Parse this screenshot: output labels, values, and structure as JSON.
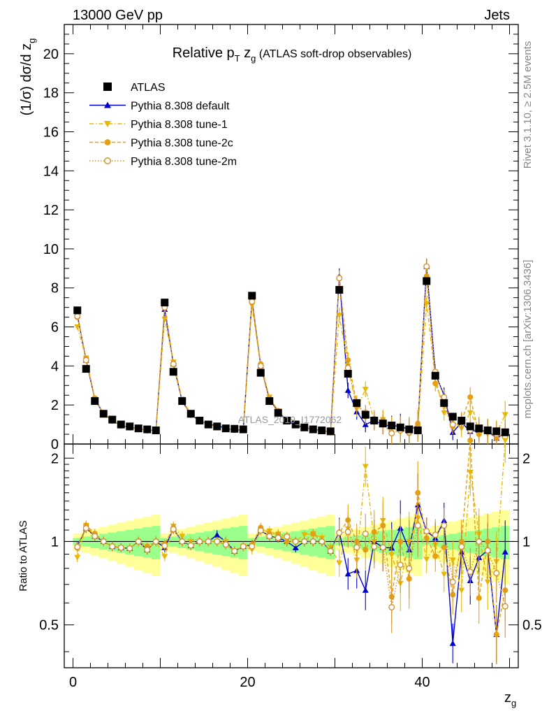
{
  "header": {
    "left": "13000 GeV pp",
    "right": "Jets",
    "side_top": "Rivet 3.1.10, ≥ 2.5M events",
    "side_bottom": "mcplots.cern.ch [arXiv:1306.3436]",
    "watermark": "ATLAS_2019_I1772062"
  },
  "chart_data": {
    "type": "line",
    "title": "Relative p_T z_g (ATLAS soft-drop observables)",
    "xlabel": "z_g",
    "ylabel": "(1/σ) dσ/d z_g",
    "ratio_ylabel": "Ratio to ATLAS",
    "xlim": [
      -1,
      51
    ],
    "ylim": [
      0,
      21.5
    ],
    "ratio_ylim": [
      0.35,
      2.25
    ],
    "x_ticks": [
      0,
      20,
      40
    ],
    "y_ticks": [
      0,
      2,
      4,
      6,
      8,
      10,
      12,
      14,
      16,
      18,
      20
    ],
    "ratio_ticks": [
      0.5,
      1,
      2
    ],
    "legend_position": "top-left",
    "x": [
      0.5,
      1.5,
      2.5,
      3.5,
      4.5,
      5.5,
      6.5,
      7.5,
      8.5,
      9.5,
      10.5,
      11.5,
      12.5,
      13.5,
      14.5,
      15.5,
      16.5,
      17.5,
      18.5,
      19.5,
      20.5,
      21.5,
      22.5,
      23.5,
      24.5,
      25.5,
      26.5,
      27.5,
      28.5,
      29.5,
      30.5,
      31.5,
      32.5,
      33.5,
      34.5,
      35.5,
      36.5,
      37.5,
      38.5,
      39.5,
      40.5,
      41.5,
      42.5,
      43.5,
      44.5,
      45.5,
      46.5,
      47.5,
      48.5,
      49.5
    ],
    "series": [
      {
        "name": "ATLAS",
        "color": "#000000",
        "marker": "square",
        "dash": "none",
        "values": [
          6.85,
          3.85,
          2.2,
          1.55,
          1.25,
          1.0,
          0.9,
          0.8,
          0.75,
          0.7,
          7.25,
          3.7,
          2.2,
          1.55,
          1.2,
          1.0,
          0.9,
          0.8,
          0.78,
          0.75,
          7.6,
          3.65,
          2.2,
          1.6,
          1.2,
          1.0,
          0.85,
          0.75,
          0.7,
          0.65,
          7.9,
          3.6,
          2.1,
          1.5,
          1.2,
          1.05,
          0.95,
          0.85,
          0.75,
          0.7,
          8.35,
          3.5,
          2.1,
          1.4,
          1.2,
          0.9,
          0.8,
          0.7,
          0.65,
          0.6
        ]
      },
      {
        "name": "Pythia 8.308 default",
        "color": "#0000cc",
        "marker": "triangle-up",
        "dash": "none",
        "values": [
          6.6,
          4.3,
          2.3,
          1.55,
          1.2,
          0.95,
          0.85,
          0.8,
          0.7,
          0.7,
          6.9,
          4.1,
          2.2,
          1.5,
          1.2,
          1.0,
          0.95,
          0.8,
          0.72,
          0.72,
          7.4,
          4.0,
          2.3,
          1.65,
          1.2,
          0.95,
          0.85,
          0.75,
          0.7,
          0.6,
          8.6,
          2.75,
          1.65,
          1.0,
          1.2,
          1.0,
          0.9,
          0.95,
          0.7,
          0.95,
          9.1,
          3.6,
          2.5,
          0.6,
          1.1,
          0.65,
          0.7,
          0.65,
          0.3,
          0.55
        ]
      },
      {
        "name": "Pythia 8.308 tune-1",
        "color": "#e8b800",
        "marker": "triangle-down",
        "dash": "6,3,1.5,3",
        "values": [
          6.0,
          4.4,
          2.3,
          1.55,
          1.2,
          0.95,
          0.85,
          0.8,
          0.7,
          0.7,
          6.4,
          4.2,
          2.3,
          1.55,
          1.2,
          1.0,
          0.9,
          0.8,
          0.72,
          0.72,
          7.1,
          4.0,
          2.4,
          1.7,
          1.25,
          1.0,
          0.9,
          0.8,
          0.72,
          0.62,
          6.6,
          4.0,
          1.8,
          2.8,
          1.2,
          1.25,
          0.85,
          0.6,
          0.75,
          0.85,
          7.2,
          3.4,
          1.6,
          1.2,
          0.8,
          1.6,
          0.85,
          0.5,
          0.55,
          1.5
        ]
      },
      {
        "name": "Pythia 8.308 tune-2c",
        "color": "#e6a010",
        "marker": "circle",
        "dash": "5,3",
        "values": [
          6.5,
          4.4,
          2.35,
          1.55,
          1.2,
          0.95,
          0.85,
          0.8,
          0.72,
          0.7,
          7.1,
          4.15,
          2.2,
          1.5,
          1.2,
          1.0,
          0.9,
          0.78,
          0.72,
          0.72,
          7.4,
          4.1,
          2.35,
          1.7,
          1.2,
          1.0,
          0.85,
          0.8,
          0.7,
          0.6,
          8.5,
          4.3,
          2.1,
          1.4,
          1.3,
          1.2,
          0.6,
          0.85,
          0.55,
          1.05,
          8.6,
          3.1,
          2.0,
          0.9,
          1.2,
          2.4,
          0.5,
          0.7,
          0.3,
          0.4
        ]
      },
      {
        "name": "Pythia 8.308 tune-2m",
        "color": "#d49030",
        "marker": "circle-open",
        "dash": "1.5,2.5",
        "values": [
          6.55,
          4.3,
          2.3,
          1.55,
          1.2,
          0.95,
          0.85,
          0.8,
          0.7,
          0.7,
          7.0,
          4.1,
          2.2,
          1.5,
          1.2,
          1.0,
          0.9,
          0.78,
          0.72,
          0.72,
          7.3,
          4.0,
          2.3,
          1.65,
          1.25,
          1.0,
          0.85,
          0.75,
          0.7,
          0.6,
          8.5,
          3.9,
          2.0,
          1.6,
          1.15,
          1.0,
          0.55,
          0.7,
          0.6,
          0.8,
          9.1,
          3.7,
          2.4,
          1.0,
          1.15,
          0.7,
          0.8,
          0.65,
          0.5,
          0.35
        ]
      }
    ]
  }
}
